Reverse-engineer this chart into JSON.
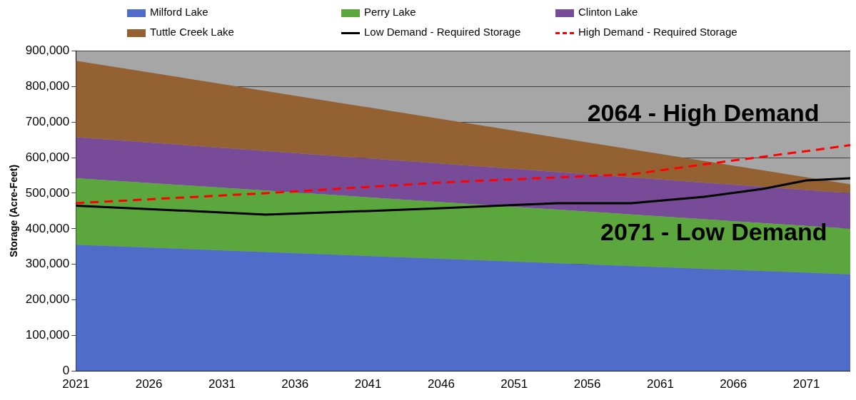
{
  "chart_data": {
    "type": "area",
    "stacked": true,
    "ylabel": "Storage (Acre-Feet)",
    "xlim": [
      2021,
      2074
    ],
    "xticks": [
      2021,
      2026,
      2031,
      2036,
      2041,
      2046,
      2051,
      2056,
      2061,
      2066,
      2071
    ],
    "ylim": [
      0,
      900000
    ],
    "yticks": [
      0,
      {
        "value": 100000,
        "label": "100,000"
      },
      {
        "value": 200000,
        "label": "200,000"
      },
      {
        "value": 300000,
        "label": "300,000"
      },
      {
        "value": 400000,
        "label": "400,000"
      },
      {
        "value": 500000,
        "label": "500,000"
      },
      {
        "value": 600000,
        "label": "600,000"
      },
      {
        "value": 700000,
        "label": "700,000"
      },
      {
        "value": 800000,
        "label": "800,000"
      },
      {
        "value": 900000,
        "label": "900,000"
      }
    ],
    "grid": "y",
    "legend": "top",
    "annotations": [
      "2064 - High Demand",
      "2071 - Low Demand"
    ],
    "series": [
      {
        "name": "Milford Lake",
        "color": "#4f6cc9",
        "x": [
          2021,
          2074
        ],
        "values": [
          355000,
          272000
        ]
      },
      {
        "name": "Perry Lake",
        "color": "#5ba63d",
        "x": [
          2021,
          2074
        ],
        "values": [
          187000,
          128000
        ]
      },
      {
        "name": "Clinton Lake",
        "color": "#784b98",
        "x": [
          2021,
          2074
        ],
        "values": [
          115000,
          100000
        ]
      },
      {
        "name": "Tuttle Creek Lake",
        "color": "#946232",
        "x": [
          2021,
          2074
        ],
        "values": [
          215000,
          25000
        ]
      },
      {
        "name": "Low Demand - Required Storage",
        "type": "line",
        "color": "#000000",
        "line_style": "solid",
        "x": [
          2021,
          2034,
          2041,
          2046,
          2051,
          2054,
          2059,
          2064,
          2068,
          2071,
          2074
        ],
        "values": [
          465000,
          440000,
          450000,
          458000,
          467000,
          472000,
          472000,
          490000,
          512000,
          536000,
          542000
        ]
      },
      {
        "name": "High Demand - Required Storage",
        "type": "line",
        "color": "#ff0000",
        "line_style": "dashed",
        "x": [
          2021,
          2034,
          2046,
          2056,
          2059,
          2066,
          2071,
          2074
        ],
        "values": [
          472000,
          500000,
          530000,
          548000,
          553000,
          592000,
          618000,
          635000
        ]
      }
    ]
  }
}
